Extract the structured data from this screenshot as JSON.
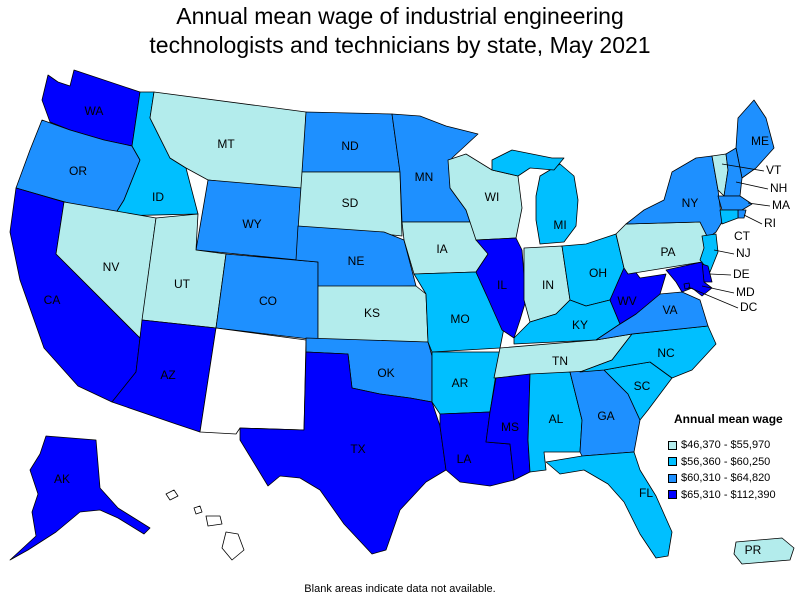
{
  "title_line1": "Annual mean wage of industrial engineering",
  "title_line2": "technologists and technicians by state, May 2021",
  "legend": {
    "title": "Annual mean wage",
    "items": [
      {
        "label": "$46,370 - $55,970",
        "color": "#b3ecec"
      },
      {
        "label": "$56,360 - $60,250",
        "color": "#00bfff"
      },
      {
        "label": "$60,310 - $64,820",
        "color": "#1e90ff"
      },
      {
        "label": "$65,310 - $112,390",
        "color": "#0000ff"
      }
    ]
  },
  "no_data_color": "#ffffff",
  "footnote": "Blank areas indicate data not available.",
  "states": [
    {
      "abbr": "WA",
      "label": "WA",
      "tier": 4
    },
    {
      "abbr": "OR",
      "label": "OR",
      "tier": 3
    },
    {
      "abbr": "CA",
      "label": "CA",
      "tier": 4
    },
    {
      "abbr": "ID",
      "label": "ID",
      "tier": 2
    },
    {
      "abbr": "NV",
      "label": "NV",
      "tier": 1
    },
    {
      "abbr": "MT",
      "label": "MT",
      "tier": 1
    },
    {
      "abbr": "WY",
      "label": "WY",
      "tier": 3
    },
    {
      "abbr": "UT",
      "label": "UT",
      "tier": 1
    },
    {
      "abbr": "AZ",
      "label": "AZ",
      "tier": 4
    },
    {
      "abbr": "CO",
      "label": "CO",
      "tier": 3
    },
    {
      "abbr": "NM",
      "label": "",
      "tier": 0
    },
    {
      "abbr": "ND",
      "label": "ND",
      "tier": 3
    },
    {
      "abbr": "SD",
      "label": "SD",
      "tier": 1
    },
    {
      "abbr": "NE",
      "label": "NE",
      "tier": 3
    },
    {
      "abbr": "KS",
      "label": "KS",
      "tier": 1
    },
    {
      "abbr": "OK",
      "label": "OK",
      "tier": 3
    },
    {
      "abbr": "TX",
      "label": "TX",
      "tier": 4
    },
    {
      "abbr": "MN",
      "label": "MN",
      "tier": 3
    },
    {
      "abbr": "IA",
      "label": "IA",
      "tier": 1
    },
    {
      "abbr": "MO",
      "label": "MO",
      "tier": 2
    },
    {
      "abbr": "AR",
      "label": "AR",
      "tier": 2
    },
    {
      "abbr": "LA",
      "label": "LA",
      "tier": 4
    },
    {
      "abbr": "WI",
      "label": "WI",
      "tier": 1
    },
    {
      "abbr": "IL",
      "label": "IL",
      "tier": 4
    },
    {
      "abbr": "MI",
      "label": "MI",
      "tier": 2
    },
    {
      "abbr": "IN",
      "label": "IN",
      "tier": 1
    },
    {
      "abbr": "OH",
      "label": "OH",
      "tier": 2
    },
    {
      "abbr": "KY",
      "label": "KY",
      "tier": 2
    },
    {
      "abbr": "TN",
      "label": "TN",
      "tier": 1
    },
    {
      "abbr": "MS",
      "label": "MS",
      "tier": 4
    },
    {
      "abbr": "AL",
      "label": "AL",
      "tier": 2
    },
    {
      "abbr": "GA",
      "label": "GA",
      "tier": 3
    },
    {
      "abbr": "FL",
      "label": "FL",
      "tier": 2
    },
    {
      "abbr": "SC",
      "label": "SC",
      "tier": 2
    },
    {
      "abbr": "NC",
      "label": "NC",
      "tier": 2
    },
    {
      "abbr": "VA",
      "label": "VA",
      "tier": 3
    },
    {
      "abbr": "WV",
      "label": "WV",
      "tier": 4
    },
    {
      "abbr": "PA",
      "label": "PA",
      "tier": 1
    },
    {
      "abbr": "NY",
      "label": "NY",
      "tier": 3
    },
    {
      "abbr": "ME",
      "label": "ME",
      "tier": 3
    },
    {
      "abbr": "VT",
      "label": "VT",
      "tier": 1
    },
    {
      "abbr": "NH",
      "label": "NH",
      "tier": 3
    },
    {
      "abbr": "MA",
      "label": "MA",
      "tier": 3
    },
    {
      "abbr": "RI",
      "label": "RI",
      "tier": 3
    },
    {
      "abbr": "CT",
      "label": "CT",
      "tier": 2
    },
    {
      "abbr": "NJ",
      "label": "NJ",
      "tier": 2
    },
    {
      "abbr": "DE",
      "label": "DE",
      "tier": 4
    },
    {
      "abbr": "MD",
      "label": "MD",
      "tier": 4
    },
    {
      "abbr": "DC",
      "label": "DC",
      "tier": 4
    },
    {
      "abbr": "AK",
      "label": "AK",
      "tier": 4
    },
    {
      "abbr": "HI",
      "label": "",
      "tier": 0
    },
    {
      "abbr": "PR",
      "label": "PR",
      "tier": 1
    }
  ]
}
